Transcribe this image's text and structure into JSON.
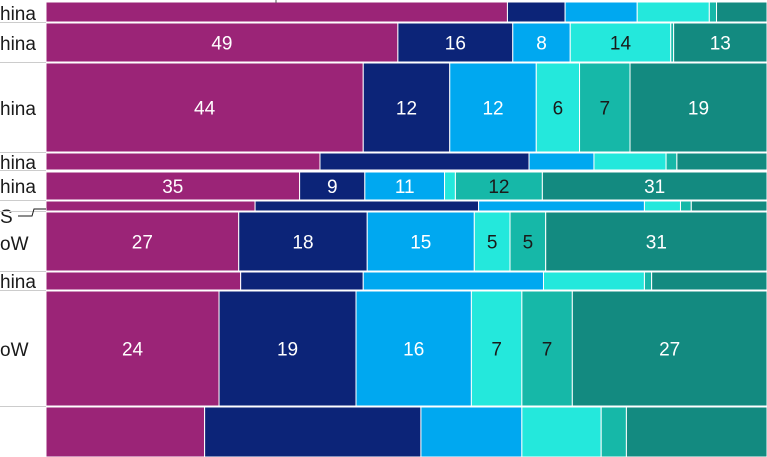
{
  "chart_data": {
    "type": "bar",
    "orientation": "horizontal",
    "stacked": true,
    "normalized_percent": true,
    "grid": false,
    "legend": "none",
    "colors": [
      "#9b2477",
      "#0c2478",
      "#00a8f0",
      "#24e8dc",
      "#16b8a8",
      "#138a80"
    ],
    "rows": [
      {
        "label": "hina",
        "values": [
          64,
          8,
          10,
          10,
          1,
          7
        ],
        "show_values": false
      },
      {
        "label": "hina",
        "values": [
          49,
          16,
          8,
          14,
          0.4,
          13
        ],
        "show_values": true
      },
      {
        "label": "hina",
        "values": [
          44,
          12,
          12,
          6,
          7,
          19
        ],
        "show_values": true
      },
      {
        "label": "hina",
        "values": [
          38,
          29,
          9,
          10,
          1.5,
          12.5
        ],
        "show_values": false
      },
      {
        "label": "hina",
        "values": [
          35,
          9,
          11,
          1.5,
          12,
          31
        ],
        "show_values": true
      },
      {
        "label": "S",
        "values": [
          29,
          31,
          23,
          5,
          1.5,
          10.5
        ],
        "show_values": false
      },
      {
        "label": "oW",
        "values": [
          27,
          18,
          15,
          5,
          5,
          31
        ],
        "show_values": true
      },
      {
        "label": "hina",
        "values": [
          27,
          17,
          25,
          14,
          1,
          16
        ],
        "show_values": false
      },
      {
        "label": "oW",
        "values": [
          24,
          19,
          16,
          7,
          7,
          27
        ],
        "show_values": true
      },
      {
        "label": "",
        "values": [
          22,
          30,
          14,
          11,
          3.5,
          19.5
        ],
        "show_values": false
      }
    ]
  }
}
